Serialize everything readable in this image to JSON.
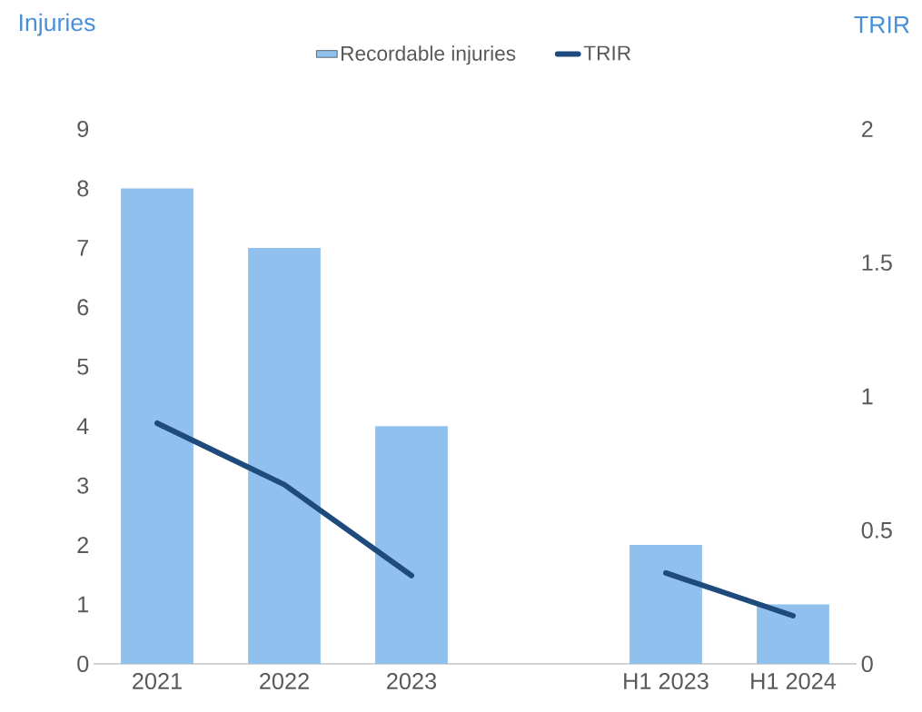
{
  "chart_data": {
    "type": "bar",
    "categories": [
      "2021",
      "2022",
      "2023",
      null,
      "H1 2023",
      "H1 2024"
    ],
    "ylabel": "Injuries",
    "y2label": "TRIR",
    "ylim": [
      0,
      9
    ],
    "yticks": [
      0,
      1,
      2,
      3,
      4,
      5,
      6,
      7,
      8,
      9
    ],
    "y2lim": [
      0,
      2
    ],
    "y2ticks": [
      0,
      0.5,
      1,
      1.5,
      2
    ],
    "legend": "top",
    "series": [
      {
        "name": "Recordable injuries",
        "color": "#8fc0ee",
        "values": [
          8,
          7,
          4,
          null,
          2,
          1
        ]
      },
      {
        "name": "TRIR",
        "type": "line",
        "axis": "y2",
        "color": "#1f4a7c",
        "values": [
          0.9,
          0.67,
          0.33,
          null,
          0.34,
          0.18
        ]
      }
    ]
  }
}
